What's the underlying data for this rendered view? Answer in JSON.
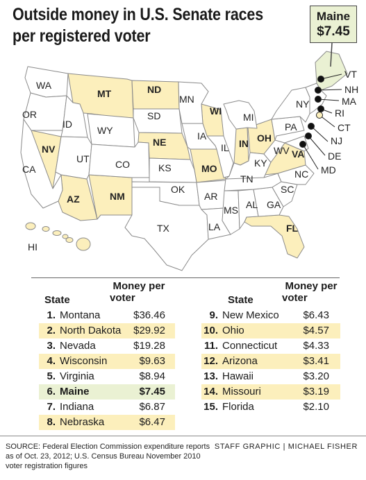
{
  "title": {
    "line1": "Outside money in U.S. Senate races",
    "line2": "per registered voter"
  },
  "callout": {
    "state": "Maine",
    "value": "$7.45"
  },
  "colors": {
    "highlight": "#fcefbc",
    "maine_highlight": "#eaf1d3",
    "map_other": "#ffffff",
    "borders": "#888888"
  },
  "map": {
    "labels": {
      "WA": "WA",
      "OR": "OR",
      "CA": "CA",
      "ID": "ID",
      "NV": "NV",
      "MT": "MT",
      "WY": "WY",
      "UT": "UT",
      "AZ": "AZ",
      "CO": "CO",
      "NM": "NM",
      "ND": "ND",
      "SD": "SD",
      "NE": "NE",
      "KS": "KS",
      "OK": "OK",
      "TX": "TX",
      "MN": "MN",
      "IA": "IA",
      "MO": "MO",
      "AR": "AR",
      "LA": "LA",
      "WI": "WI",
      "IL": "IL",
      "MI": "MI",
      "IN": "IN",
      "OH": "OH",
      "KY": "KY",
      "TN": "TN",
      "MS": "MS",
      "AL": "AL",
      "GA": "GA",
      "FL": "FL",
      "SC": "SC",
      "NC": "NC",
      "VA": "VA",
      "WV": "WV",
      "PA": "PA",
      "NY": "NY",
      "VT": "VT",
      "NH": "NH",
      "MA": "MA",
      "RI": "RI",
      "CT": "CT",
      "NJ": "NJ",
      "DE": "DE",
      "MD": "MD",
      "HI": "HI"
    }
  },
  "table": {
    "headers": {
      "state": "State",
      "money_line1": "Money per",
      "money_line2": "voter"
    },
    "left": [
      {
        "rank": "1.",
        "state": "Montana",
        "value": "$36.46"
      },
      {
        "rank": "2.",
        "state": "North Dakota",
        "value": "$29.92"
      },
      {
        "rank": "3.",
        "state": "Nevada",
        "value": "$19.28"
      },
      {
        "rank": "4.",
        "state": "Wisconsin",
        "value": "$9.63"
      },
      {
        "rank": "5.",
        "state": "Virginia",
        "value": "$8.94"
      },
      {
        "rank": "6.",
        "state": "Maine",
        "value": "$7.45"
      },
      {
        "rank": "7.",
        "state": "Indiana",
        "value": "$6.87"
      },
      {
        "rank": "8.",
        "state": "Nebraska",
        "value": "$6.47"
      }
    ],
    "right": [
      {
        "rank": "9.",
        "state": "New Mexico",
        "value": "$6.43"
      },
      {
        "rank": "10.",
        "state": "Ohio",
        "value": "$4.57"
      },
      {
        "rank": "11.",
        "state": "Connecticut",
        "value": "$4.33"
      },
      {
        "rank": "12.",
        "state": "Arizona",
        "value": "$3.41"
      },
      {
        "rank": "13.",
        "state": "Hawaii",
        "value": "$3.20"
      },
      {
        "rank": "14.",
        "state": "Missouri",
        "value": "$3.19"
      },
      {
        "rank": "15.",
        "state": "Florida",
        "value": "$2.10"
      }
    ]
  },
  "source": {
    "label": "SOURCE:",
    "text": "Federal Election Commission expenditure reports as of Oct. 23, 2012; U.S. Census Bureau November 2010 voter registration figures"
  },
  "credit": {
    "staff": "STAFF GRAPHIC",
    "separator": "|",
    "author": "MICHAEL FISHER"
  }
}
